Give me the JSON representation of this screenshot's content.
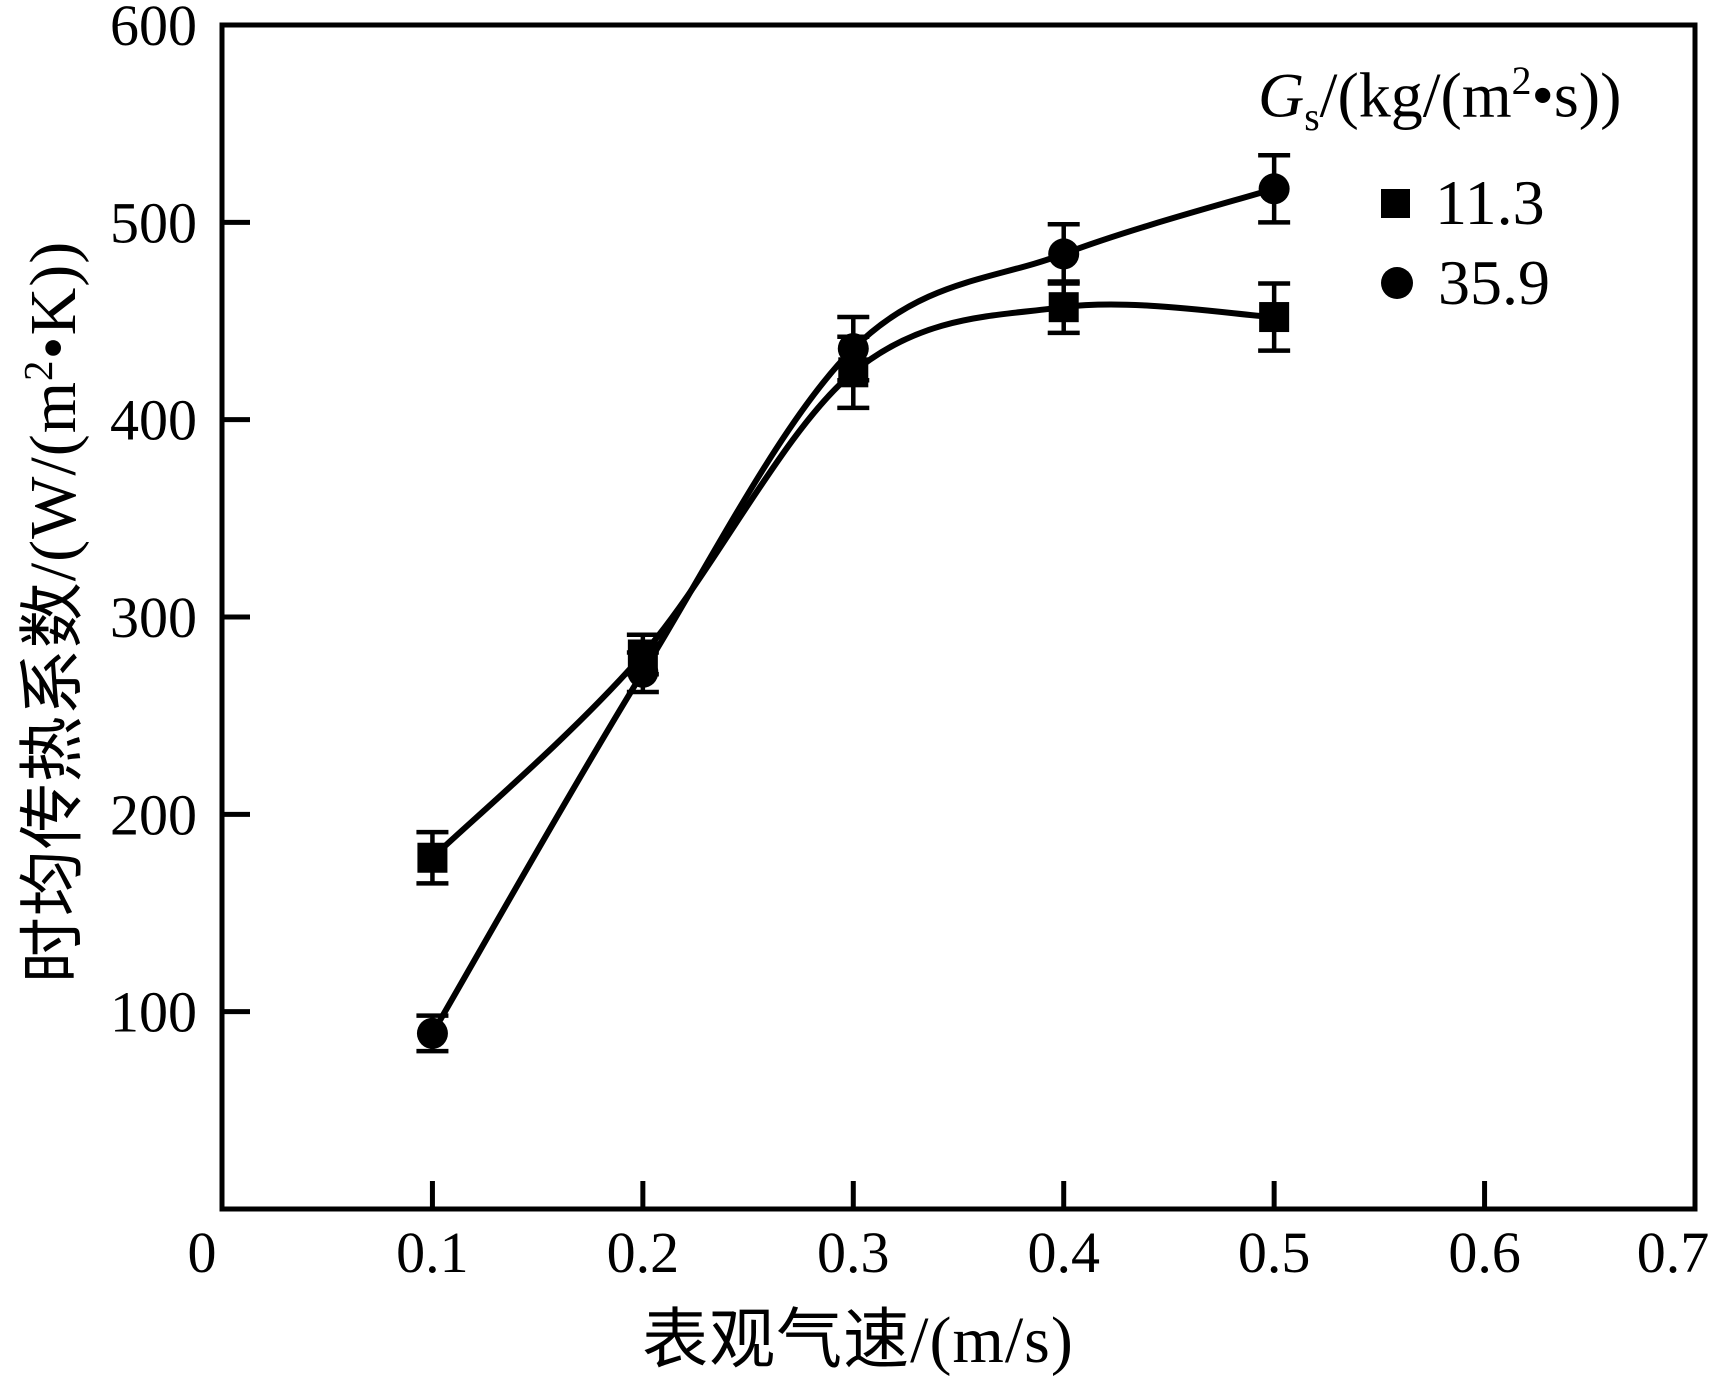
{
  "chart_data": {
    "type": "line",
    "title": "",
    "xlabel": "表观气速/(m/s)",
    "ylabel": "时均传热系数/(W/(m²•K))",
    "ylabel_parts": {
      "main": "时均传热系数/(W/(m",
      "sup": "2",
      "tail": "•K))"
    },
    "xlim": [
      0,
      0.7
    ],
    "ylim": [
      0,
      600
    ],
    "x_tick_values": [
      0,
      0.1,
      0.2,
      0.3,
      0.4,
      0.5,
      0.6,
      0.7
    ],
    "x_ticks": [
      "0",
      "0.1",
      "0.2",
      "0.3",
      "0.4",
      "0.5",
      "0.6",
      "0.7"
    ],
    "y_tick_values": [
      100,
      200,
      300,
      400,
      500,
      600
    ],
    "y_ticks": [
      "100",
      "200",
      "300",
      "400",
      "500",
      "600"
    ],
    "grid": false,
    "color": "#000000",
    "x": [
      0.1,
      0.2,
      0.3,
      0.4,
      0.5
    ],
    "series": [
      {
        "name": "11.3",
        "marker": "square",
        "values": [
          178,
          281,
          424,
          457,
          452
        ],
        "yerr": [
          13,
          10,
          18,
          13,
          17
        ]
      },
      {
        "name": "35.9",
        "marker": "circle",
        "values": [
          89,
          272,
          436,
          484,
          517
        ],
        "yerr": [
          9,
          10,
          16,
          15,
          17
        ]
      }
    ],
    "legend": {
      "position": "top-right",
      "title": "Gs/(kg/(m²•s))",
      "title_parts": {
        "g": "G",
        "sub": "s",
        "mid": "/(kg/(m",
        "sup": "2",
        "tail": "•s))"
      }
    }
  }
}
